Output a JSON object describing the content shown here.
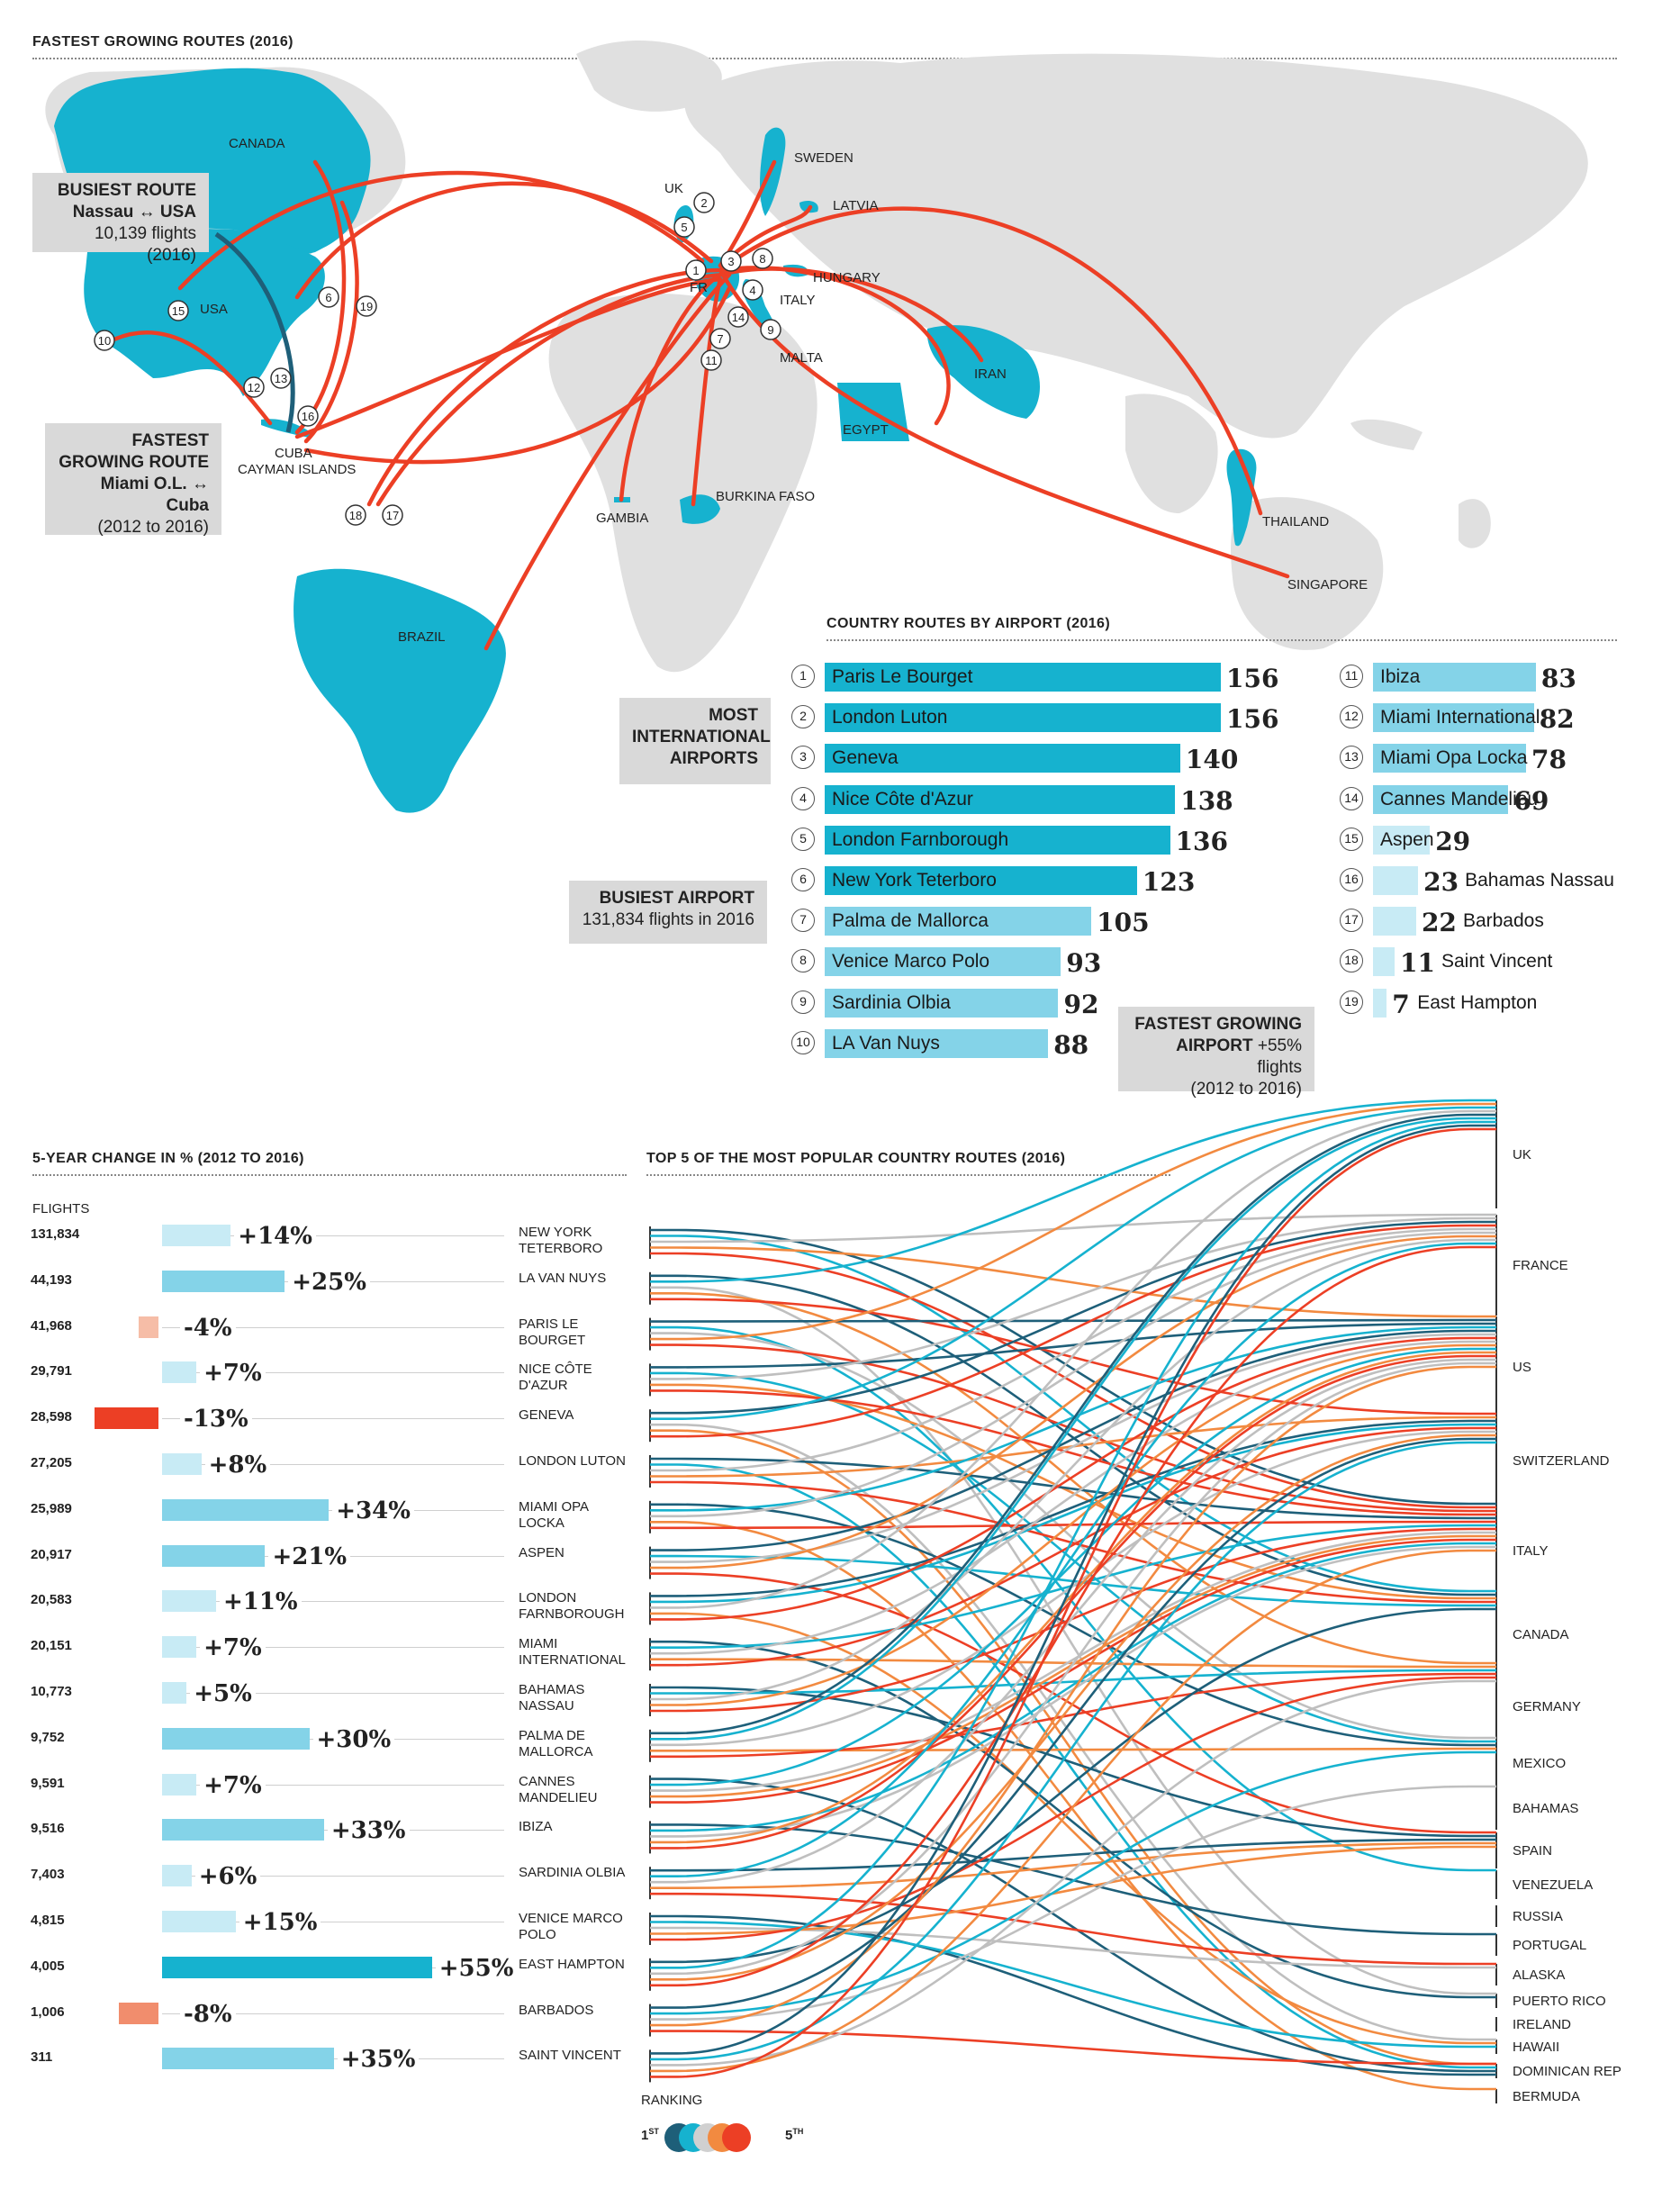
{
  "colors": {
    "cyan": "#16b2cf",
    "light_cyan": "#84d3e8",
    "pale_cyan": "#c8ebf5",
    "route_red": "#ec3f25",
    "land_gray": "#e0e0e0",
    "callout_gray": "#d9d9d9",
    "negative_red": "#ec3f25",
    "negative_light": "#f18d6d",
    "negative_pale": "#f6bda7",
    "rank_colors": [
      "#1e5f79",
      "#16b2cf",
      "#bfbfbf",
      "#f28a40",
      "#ec3f25"
    ]
  },
  "map": {
    "title": "FASTEST GROWING ROUTES (2016)",
    "country_labels": [
      "CANADA",
      "USA",
      "UK",
      "FR",
      "SWEDEN",
      "LATVIA",
      "HUNGARY",
      "ITALY",
      "MALTA",
      "IRAN",
      "EGYPT",
      "GAMBIA",
      "BURKINA FASO",
      "THAILAND",
      "SINGAPORE",
      "BRAZIL",
      "CUBA",
      "CAYMAN ISLANDS"
    ],
    "callout_busiest_route": {
      "heading": "BUSIEST ROUTE",
      "route": "Nassau ↔ USA",
      "detail": "10,139 flights (2016)"
    },
    "callout_fastest_route": {
      "heading_line1": "FASTEST",
      "heading_line2": "GROWING ROUTE",
      "route": "Miami O.L. ↔ Cuba",
      "detail": "(2012 to 2016)"
    }
  },
  "routes_by_airport": {
    "title": "COUNTRY ROUTES BY AIRPORT (2016)",
    "callout_most_international": {
      "line1": "MOST",
      "line2": "INTERNATIONAL",
      "line3": "AIRPORTS"
    },
    "callout_busiest_airport": {
      "heading": "BUSIEST AIRPORT",
      "detail": "131,834 flights in 2016"
    },
    "callout_fastest_airport": {
      "heading": "FASTEST GROWING",
      "heading2": "AIRPORT",
      "detail1": "+55% flights",
      "detail2": "(2012 to 2016)"
    }
  },
  "chart_data": [
    {
      "type": "bar",
      "title": "COUNTRY ROUTES BY AIRPORT (2016)",
      "categories": [
        "Paris Le Bourget",
        "London Luton",
        "Geneva",
        "Nice Côte d'Azur",
        "London Farnborough",
        "New York Teterboro",
        "Palma de Mallorca",
        "Venice Marco Polo",
        "Sardinia Olbia",
        "LA Van Nuys",
        "Ibiza",
        "Miami International",
        "Miami Opa Locka",
        "Cannes Mandelieu",
        "Aspen",
        "Bahamas Nassau",
        "Barbados",
        "Saint Vincent",
        "East Hampton"
      ],
      "ranks": [
        "1",
        "2",
        "3",
        "4",
        "5",
        "6",
        "7",
        "8",
        "9",
        "10",
        "11",
        "12",
        "13",
        "14",
        "15",
        "16",
        "17",
        "18",
        "19"
      ],
      "values": [
        156,
        156,
        140,
        138,
        136,
        123,
        105,
        93,
        92,
        88,
        83,
        82,
        78,
        69,
        29,
        23,
        22,
        11,
        7
      ],
      "xlim": [
        0,
        156
      ]
    },
    {
      "type": "bar",
      "title": "5-YEAR CHANGE IN % (2012 TO 2016)",
      "flights_label": "FLIGHTS",
      "categories": [
        "NEW YORK TETERBORO",
        "LA VAN NUYS",
        "PARIS LE BOURGET",
        "NICE CÔTE D'AZUR",
        "GENEVA",
        "LONDON LUTON",
        "MIAMI OPA LOCKA",
        "ASPEN",
        "LONDON FARNBOROUGH",
        "MIAMI INTERNATIONAL",
        "BAHAMAS NASSAU",
        "PALMA DE MALLORCA",
        "CANNES MANDELIEU",
        "IBIZA",
        "SARDINIA OLBIA",
        "VENICE MARCO POLO",
        "EAST HAMPTON",
        "BARBADOS",
        "SAINT VINCENT"
      ],
      "flights": [
        "131,834",
        "44,193",
        "41,968",
        "29,791",
        "28,598",
        "27,205",
        "25,989",
        "20,917",
        "20,583",
        "20,151",
        "10,773",
        "9,752",
        "9,591",
        "9,516",
        "7,403",
        "4,815",
        "4,005",
        "1,006",
        "311"
      ],
      "values": [
        14,
        25,
        -4,
        7,
        -13,
        8,
        34,
        21,
        11,
        7,
        5,
        30,
        7,
        33,
        6,
        15,
        55,
        -8,
        35
      ],
      "labels": [
        "+14%",
        "+25%",
        "-4%",
        "+7%",
        "-13%",
        "+8%",
        "+34%",
        "+21%",
        "+11%",
        "+7%",
        "+5%",
        "+30%",
        "+7%",
        "+33%",
        "+6%",
        "+15%",
        "+55%",
        "-8%",
        "+35%"
      ]
    },
    {
      "type": "flow",
      "title": "TOP 5 OF THE MOST POPULAR COUNTRY ROUTES (2016)",
      "destinations": [
        "UK",
        "FRANCE",
        "US",
        "SWITZERLAND",
        "ITALY",
        "CANADA",
        "GERMANY",
        "MEXICO",
        "BAHAMAS",
        "SPAIN",
        "VENEZUELA",
        "RUSSIA",
        "PORTUGAL",
        "ALASKA",
        "PUERTO RICO",
        "IRELAND",
        "HAWAII",
        "DOMINICAN REP",
        "BERMUDA"
      ],
      "legend_title": "RANKING",
      "legend_start": "1",
      "legend_start_sup": "ST",
      "legend_end": "5",
      "legend_end_sup": "TH"
    }
  ]
}
